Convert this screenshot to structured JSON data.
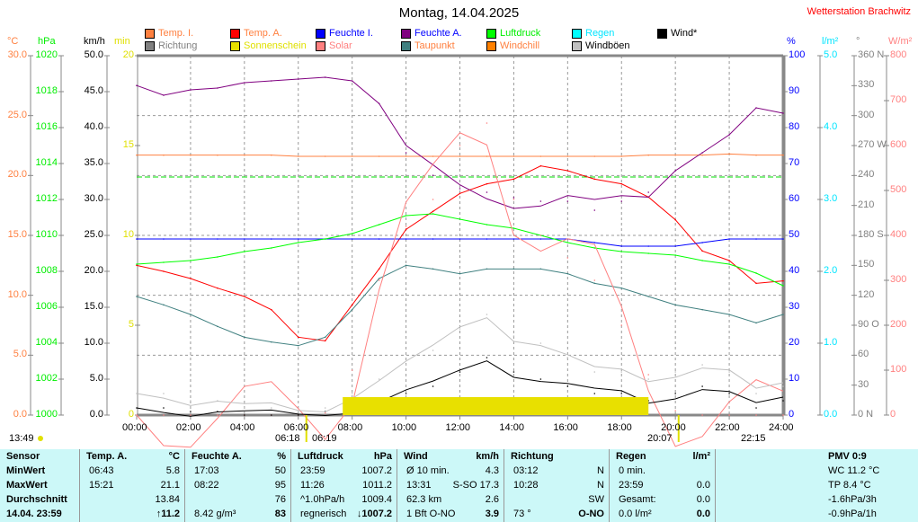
{
  "title": "Montag, 14.04.2025",
  "station": "Wetterstation Brachwitz",
  "legend": [
    {
      "label": "Temp. I.",
      "color": "#ff8040",
      "text_color": "#ff8040"
    },
    {
      "label": "Temp. A.",
      "color": "#ff0000",
      "text_color": "#ff8040"
    },
    {
      "label": "Feuchte I.",
      "color": "#0000ff",
      "text_color": "#0000ff"
    },
    {
      "label": "Feuchte A.",
      "color": "#800080",
      "text_color": "#0000ff"
    },
    {
      "label": "Luftdruck",
      "color": "#00ff00",
      "text_color": "#00ee00"
    },
    {
      "label": "Regen",
      "color": "#00ffff",
      "text_color": "#00e5ff"
    },
    {
      "label": "Wind*",
      "color": "#000000",
      "text_color": "#000000"
    },
    {
      "label": "Richtung",
      "color": "#808080",
      "text_color": "#808080"
    },
    {
      "label": "Sonnenschein",
      "color": "#e8e000",
      "text_color": "#e0e000"
    },
    {
      "label": "Solar",
      "color": "#ff8080",
      "text_color": "#ff8080"
    },
    {
      "label": "Taupunkt",
      "color": "#408080",
      "text_color": "#ff8040"
    },
    {
      "label": "Windchill",
      "color": "#ff8000",
      "text_color": "#ff8040"
    },
    {
      "label": "Windböen",
      "color": "#c0c0c0",
      "text_color": "#000000"
    }
  ],
  "axes": {
    "temp": {
      "unit": "°C",
      "color": "#ff8040",
      "ticks": [
        "30.0",
        "25.0",
        "20.0",
        "15.0",
        "10.0",
        "5.0",
        "0.0"
      ],
      "range": [
        0,
        30
      ]
    },
    "pressure": {
      "unit": "hPa",
      "color": "#00ee00",
      "ticks": [
        "1020",
        "1018",
        "1016",
        "1014",
        "1012",
        "1010",
        "1008",
        "1006",
        "1004",
        "1002",
        "1000"
      ],
      "range": [
        1000,
        1020
      ]
    },
    "wind": {
      "unit": "km/h",
      "color": "#000000",
      "ticks": [
        "50.0",
        "45.0",
        "40.0",
        "35.0",
        "30.0",
        "25.0",
        "20.0",
        "15.0",
        "10.0",
        "5.0",
        "0.0"
      ],
      "range": [
        0,
        50
      ]
    },
    "sun": {
      "unit": "min",
      "color": "#e0e000",
      "ticks": [
        "20",
        "15",
        "10",
        "5",
        "0"
      ],
      "range": [
        0,
        20
      ]
    },
    "humidity": {
      "unit": "%",
      "color": "#0000ff",
      "ticks": [
        "100",
        "90",
        "80",
        "70",
        "60",
        "50",
        "40",
        "30",
        "20",
        "10",
        "0"
      ],
      "range": [
        0,
        100
      ]
    },
    "rain": {
      "unit": "l/m²",
      "color": "#00e5ff",
      "ticks": [
        "5.0",
        "4.0",
        "3.0",
        "2.0",
        "1.0",
        "0.0"
      ],
      "range": [
        0,
        5
      ]
    },
    "direction": {
      "unit": "°",
      "color": "#808080",
      "ticks": [
        "360 N",
        "330",
        "300",
        "270 W",
        "240",
        "210",
        "180 S",
        "150",
        "120",
        "90  O",
        "60",
        "30",
        "0    N"
      ],
      "range": [
        0,
        360
      ]
    },
    "solar": {
      "unit": "W/m²",
      "color": "#ff8080",
      "ticks": [
        "800",
        "700",
        "600",
        "500",
        "400",
        "300",
        "200",
        "100",
        "0"
      ],
      "range": [
        0,
        800
      ]
    },
    "x_ticks": [
      "00:00",
      "02:00",
      "04:00",
      "06:00",
      "08:00",
      "10:00",
      "12:00",
      "14:00",
      "16:00",
      "18:00",
      "20:00",
      "22:00",
      "24:00"
    ]
  },
  "astro": {
    "moonset": "13:49",
    "sunrise": "06:18",
    "sunrise2": "06:19",
    "sunset": "20:07",
    "moonrise": "22:15"
  },
  "chart_data": {
    "type": "line",
    "x_unit": "hour of day",
    "x": [
      0,
      1,
      2,
      3,
      4,
      5,
      6,
      7,
      8,
      9,
      10,
      11,
      12,
      13,
      14,
      15,
      16,
      17,
      18,
      19,
      20,
      21,
      22,
      23,
      24
    ],
    "grid": true,
    "series": [
      {
        "name": "Temp. I.",
        "axis": "temp",
        "values": [
          21.7,
          21.7,
          21.7,
          21.7,
          21.7,
          21.7,
          21.6,
          21.6,
          21.6,
          21.6,
          21.6,
          21.6,
          21.6,
          21.6,
          21.6,
          21.6,
          21.6,
          21.6,
          21.6,
          21.7,
          21.7,
          21.7,
          21.8,
          21.7,
          21.7
        ]
      },
      {
        "name": "Temp. A.",
        "axis": "temp",
        "values": [
          12.5,
          12,
          11.4,
          10.6,
          9.9,
          8.8,
          6.5,
          6.2,
          9.2,
          12.2,
          15.5,
          17,
          18.5,
          19.3,
          19.7,
          20.8,
          20.4,
          19.7,
          19.3,
          18.2,
          16.3,
          13.7,
          12.9,
          11,
          11.2
        ]
      },
      {
        "name": "Taupunkt",
        "axis": "temp",
        "values": [
          9.9,
          9.2,
          8.4,
          7.4,
          6.5,
          6.1,
          5.8,
          6.5,
          8.8,
          11.4,
          12.5,
          12.2,
          11.8,
          12.2,
          12.2,
          12.2,
          11.8,
          11,
          10.6,
          9.9,
          9.2,
          8.8,
          8.4,
          7.7,
          8.4
        ]
      },
      {
        "name": "Feuchte A.",
        "axis": "humidity",
        "values": [
          91.7,
          89,
          90.5,
          91,
          92.5,
          93,
          93.5,
          94,
          93,
          86.7,
          73,
          66.7,
          63,
          62,
          60.5,
          59.5,
          59.5,
          57,
          59.5,
          62,
          68,
          73,
          78,
          85.5,
          84
        ]
      },
      {
        "name": "Feuchte I.",
        "axis": "humidity",
        "values": [
          49,
          49,
          49,
          49,
          49,
          49,
          49,
          49,
          49,
          49,
          49,
          49,
          49,
          49,
          49,
          49,
          49,
          48,
          47,
          47,
          47,
          48,
          49,
          49,
          49
        ]
      },
      {
        "name": "Luftdruck",
        "axis": "pressure",
        "values": [
          1008.4,
          1008.5,
          1008.6,
          1008.8,
          1009.1,
          1009.3,
          1009.6,
          1009.8,
          1010.1,
          1010.6,
          1011.1,
          1011.2,
          1010.9,
          1010.6,
          1010.4,
          1010.0,
          1009.6,
          1009.3,
          1009.1,
          1009.0,
          1008.9,
          1008.6,
          1008.4,
          1007.9,
          1007.2
        ]
      },
      {
        "name": "Solar",
        "axis": "solar",
        "values": [
          0,
          0,
          0,
          0,
          0,
          0,
          0,
          5,
          100,
          300,
          420,
          480,
          600,
          650,
          480,
          400,
          350,
          300,
          200,
          90,
          10,
          0,
          0,
          0,
          0
        ]
      },
      {
        "name": "Wind*",
        "axis": "wind",
        "values": [
          1,
          1,
          0.5,
          0.5,
          0,
          0,
          0,
          0.5,
          1,
          2,
          3,
          4,
          6,
          8,
          6,
          5,
          4,
          3,
          3,
          2,
          3,
          4,
          3,
          1,
          2
        ]
      },
      {
        "name": "Windböen",
        "axis": "wind",
        "values": [
          3,
          3,
          2,
          2,
          1,
          1,
          0.5,
          1,
          3,
          5,
          7,
          9,
          12,
          14,
          11,
          10,
          8,
          6,
          6,
          5,
          6,
          7,
          6,
          3,
          4
        ]
      },
      {
        "name": "Sonnenschein",
        "axis": "sun",
        "values": [
          0,
          0,
          0,
          0,
          0,
          0,
          0,
          0,
          1,
          1,
          1,
          1,
          1,
          1,
          1,
          1,
          1,
          1,
          1,
          0,
          0,
          0,
          0,
          0,
          0
        ]
      }
    ],
    "reference_line": {
      "axis": "pressure",
      "value": 1013.25
    }
  },
  "table": {
    "row_labels": [
      "Sensor",
      "MinWert",
      "MaxWert",
      "Durchschnitt",
      "14.04. 23:59"
    ],
    "cols": [
      {
        "head": "Temp. A.",
        "unit": "°C",
        "left": [
          "06:43",
          "15:21",
          "",
          ""
        ],
        "right": [
          "5.8",
          "21.1",
          "13.84",
          "↑11.2"
        ]
      },
      {
        "head": "Feuchte A.",
        "unit": "%",
        "left": [
          "17:03",
          "08:22",
          "",
          "8.42 g/m³"
        ],
        "right": [
          "50",
          "95",
          "76",
          "83"
        ]
      },
      {
        "head": "Luftdruck",
        "unit": "hPa",
        "left": [
          "23:59",
          "11:26",
          "^1.0hPa/h",
          "regnerisch"
        ],
        "right": [
          "1007.2",
          "1011.2",
          "1009.4",
          "↓1007.2"
        ]
      },
      {
        "head": "Wind",
        "unit": "km/h",
        "left": [
          "Ø 10 min.",
          "13:31",
          "62.3 km",
          "1 Bft O-NO"
        ],
        "right": [
          "4.3",
          "S-SO 17.3",
          "2.6",
          "3.9"
        ]
      },
      {
        "head": "Richtung",
        "unit": "",
        "left": [
          "03:12",
          "10:28",
          "",
          "73 °"
        ],
        "right": [
          "N",
          "N",
          "SW",
          "O-NO"
        ]
      },
      {
        "head": "Regen",
        "unit": "l/m²",
        "left": [
          "0 min.",
          "23:59",
          "Gesamt:",
          "0.0 l/m²"
        ],
        "right": [
          "",
          "0.0",
          "0.0",
          "0.0"
        ]
      }
    ],
    "pmv": {
      "head": "PMV 0:9",
      "lines": [
        "WC 11.2 °C",
        "TP 8.4 °C",
        "-1.6hPa/3h",
        "-0.9hPa/1h"
      ]
    }
  }
}
